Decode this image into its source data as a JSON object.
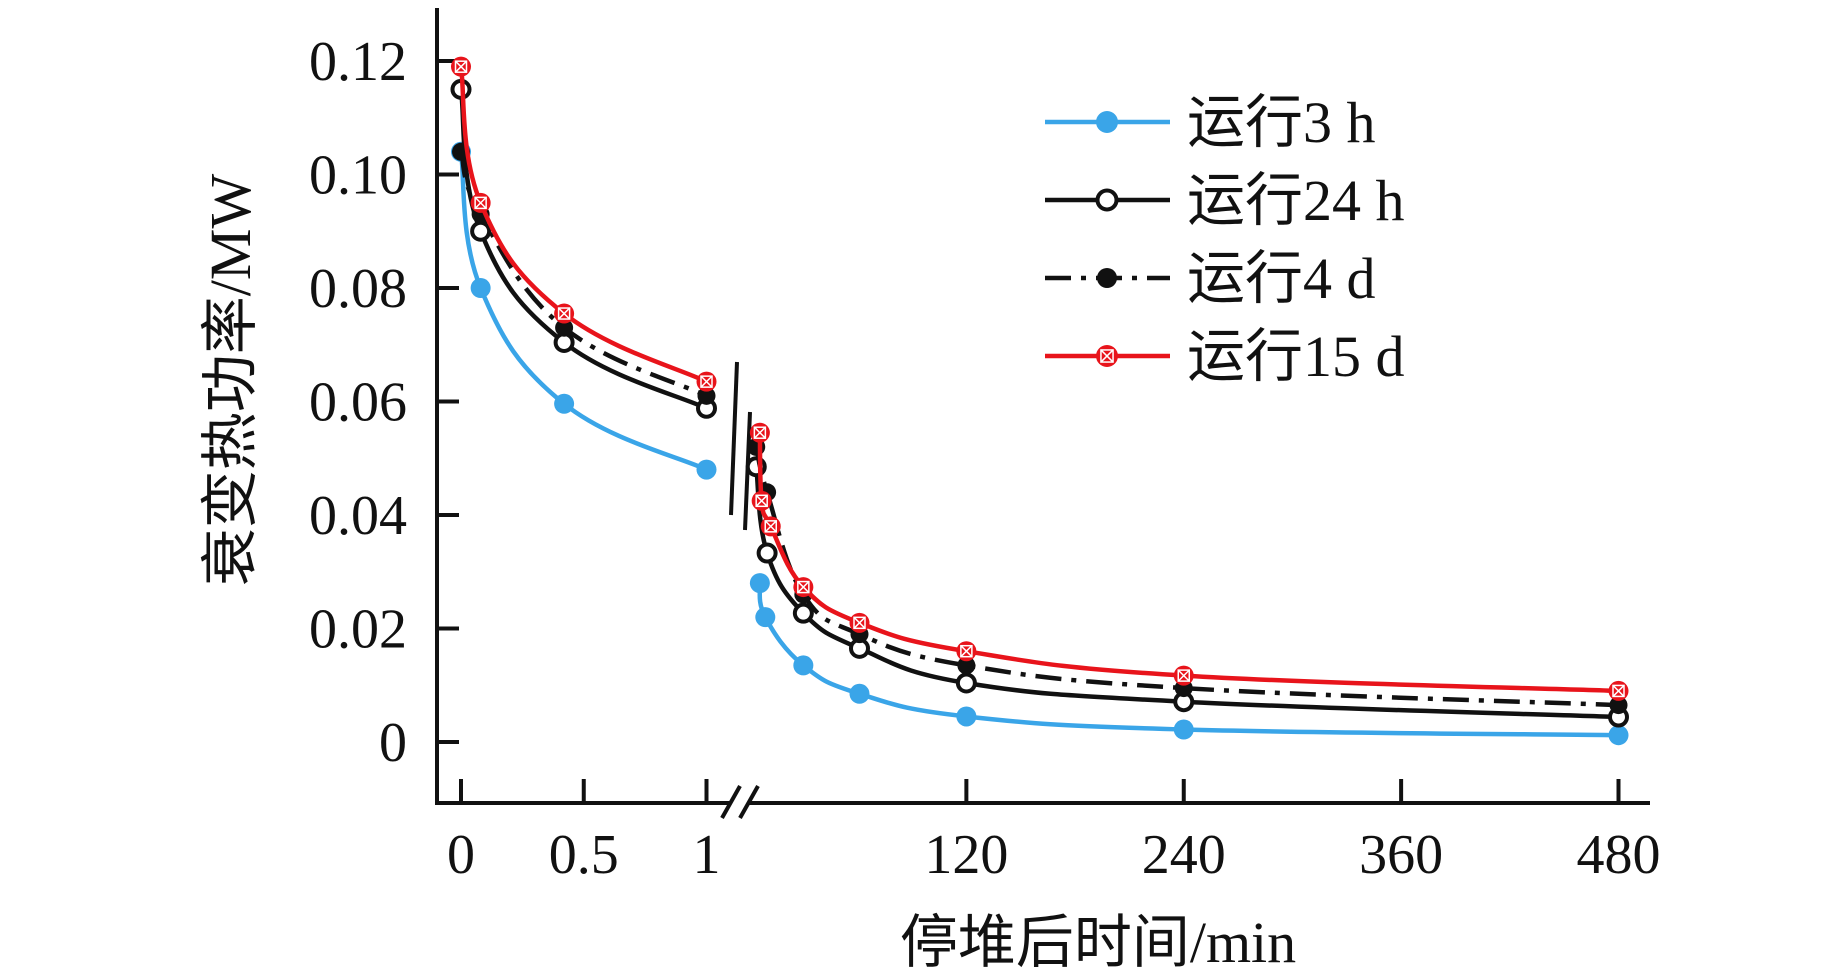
{
  "chart_data": {
    "type": "line",
    "title": "",
    "xlabel": "停堆后时间/min",
    "ylabel": "衰变热功率/MW",
    "ylim": [
      0,
      0.12
    ],
    "yticks": [
      "0",
      "0.02",
      "0.04",
      "0.06",
      "0.08",
      "0.10",
      "0.12"
    ],
    "ytick_values": [
      0,
      0.02,
      0.04,
      0.06,
      0.08,
      0.1,
      0.12
    ],
    "x_break": true,
    "x_segments": [
      {
        "xlim": [
          0,
          1
        ],
        "ticks": [
          0,
          0.5,
          1
        ],
        "tick_labels": [
          "0",
          "0.5",
          "1"
        ]
      },
      {
        "xlim": [
          0,
          480
        ],
        "ticks": [
          120,
          240,
          360,
          480
        ],
        "tick_labels": [
          "120",
          "240",
          "360",
          "480"
        ]
      }
    ],
    "legend_position": "top-right",
    "series": [
      {
        "name": "运行3 h",
        "color": "#3AA5E8",
        "style": "solid",
        "marker": "filled-circle",
        "left": [
          [
            0,
            0.104
          ],
          [
            0.08,
            0.08
          ],
          [
            0.42,
            0.0596
          ],
          [
            1,
            0.048
          ]
        ],
        "right": [
          [
            6,
            0.028
          ],
          [
            9,
            0.022
          ],
          [
            30,
            0.0135
          ],
          [
            61,
            0.0085
          ],
          [
            120,
            0.0045
          ],
          [
            240,
            0.0022
          ],
          [
            480,
            0.0012
          ]
        ]
      },
      {
        "name": "运行24 h",
        "color": "#111111",
        "style": "solid",
        "marker": "open-circle",
        "left": [
          [
            0,
            0.115
          ],
          [
            0.08,
            0.09
          ],
          [
            0.42,
            0.0704
          ],
          [
            1,
            0.0588
          ]
        ],
        "right": [
          [
            4,
            0.0485
          ],
          [
            10,
            0.0333
          ],
          [
            30,
            0.0227
          ],
          [
            61,
            0.0165
          ],
          [
            120,
            0.0104
          ],
          [
            240,
            0.0071
          ],
          [
            480,
            0.0044
          ]
        ]
      },
      {
        "name": "运行4 d",
        "color": "#111111",
        "style": "dashdot",
        "marker": "half-filled-circle",
        "left": [
          [
            0,
            0.104
          ],
          [
            0.08,
            0.093
          ],
          [
            0.42,
            0.073
          ],
          [
            1,
            0.061
          ]
        ],
        "right": [
          [
            4,
            0.052
          ],
          [
            10,
            0.044
          ],
          [
            30,
            0.026
          ],
          [
            61,
            0.019
          ],
          [
            120,
            0.0135
          ],
          [
            240,
            0.0095
          ],
          [
            480,
            0.0065
          ]
        ]
      },
      {
        "name": "运行15 d",
        "color": "#E8141B",
        "style": "solid",
        "marker": "crossed-circle",
        "left": [
          [
            0,
            0.119
          ],
          [
            0.08,
            0.095
          ],
          [
            0.42,
            0.0755
          ],
          [
            1,
            0.0635
          ]
        ],
        "right": [
          [
            6,
            0.0545
          ],
          [
            7,
            0.0425
          ],
          [
            12,
            0.038
          ],
          [
            30,
            0.0273
          ],
          [
            61,
            0.021
          ],
          [
            120,
            0.016
          ],
          [
            240,
            0.0117
          ],
          [
            480,
            0.009
          ]
        ]
      }
    ]
  }
}
